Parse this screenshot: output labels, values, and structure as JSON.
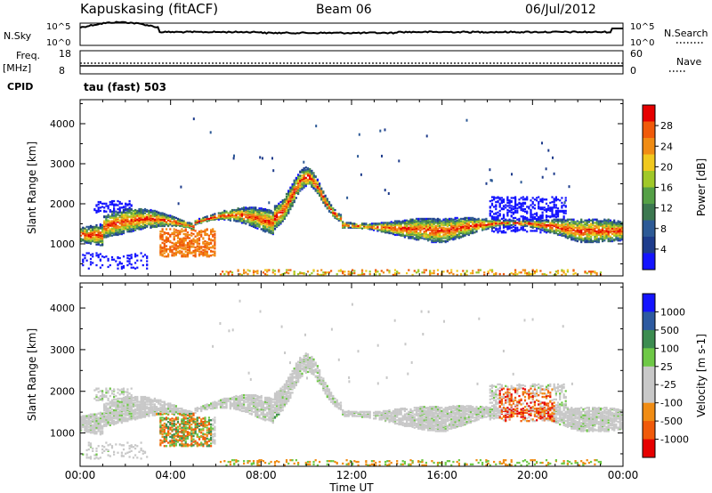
{
  "header": {
    "station": "Kapuskasing (fitACF)",
    "beam": "Beam 06",
    "date": "06/Jul/2012"
  },
  "left_labels": {
    "nsky": "N.Sky",
    "freq": "Freq.",
    "freq_unit": "[MHz]",
    "cpid": "CPID"
  },
  "right_labels": {
    "nsearch": "N.Search",
    "nave": "Nave"
  },
  "cpid_text": "tau (fast) 503",
  "colors": {
    "background": "#ffffff",
    "axis": "#000000",
    "power_scale": [
      "#1414ff",
      "#1e3c8c",
      "#2d5a96",
      "#3c7850",
      "#55a046",
      "#a0c828",
      "#f0c81e",
      "#f08c14",
      "#f05a0a",
      "#e60000"
    ],
    "velocity_scale": [
      "#e60000",
      "#f05a0a",
      "#f08c14",
      "#c8c8c8",
      "#c8c8c8",
      "#6ec846",
      "#3c8c50",
      "#2d5aa0",
      "#1414ff"
    ]
  },
  "chart_data": [
    {
      "type": "line",
      "name": "noise-panel",
      "left_label": "N.Sky",
      "right_label": "N.Search",
      "yticks_left": [
        "10^5",
        "10^0"
      ],
      "yticks_right": [
        "10^5",
        "10^0"
      ]
    },
    {
      "type": "line",
      "name": "freq-panel",
      "left_ticks": [
        "18",
        "8"
      ],
      "right_ticks": [
        "60",
        "0"
      ]
    },
    {
      "type": "heatmap",
      "name": "power",
      "ylabel": "Slant Range [km]",
      "yticks": [
        "1000",
        "2000",
        "3000",
        "4000"
      ],
      "ylim": [
        200,
        4600
      ],
      "colorbar_label": "Power [dB]",
      "colorbar_ticks": [
        "4",
        "8",
        "12",
        "16",
        "20",
        "24",
        "28"
      ]
    },
    {
      "type": "heatmap",
      "name": "velocity",
      "ylabel": "Slant Range [km]",
      "yticks": [
        "1000",
        "2000",
        "3000",
        "4000"
      ],
      "ylim": [
        200,
        4600
      ],
      "colorbar_label": "Velocity [m s-1]",
      "colorbar_ticks": [
        "1000",
        "500",
        "100",
        "25",
        "-25",
        "-100",
        "-500",
        "-1000"
      ],
      "xticks": [
        "00:00",
        "04:00",
        "08:00",
        "12:00",
        "16:00",
        "20:00",
        "00:00"
      ],
      "xlabel": "Time UT"
    }
  ]
}
